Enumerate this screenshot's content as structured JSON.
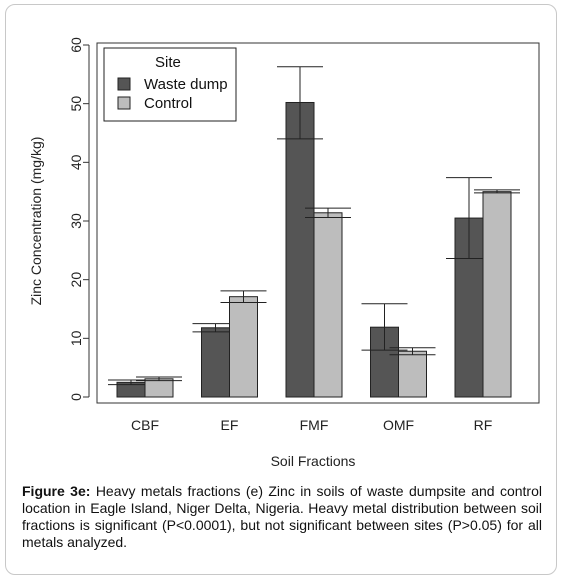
{
  "chart_data": {
    "type": "bar",
    "ylabel": "Zinc Concentration (mg/kg)",
    "xlabel": "Soil Fractions",
    "ylim": [
      0,
      60
    ],
    "yticks": [
      "0",
      "10",
      "20",
      "30",
      "40",
      "50",
      "60"
    ],
    "categories": [
      "CBF",
      "EF",
      "FMF",
      "OMF",
      "RF"
    ],
    "legend": {
      "title": "Site",
      "position": "top-left"
    },
    "series": [
      {
        "name": "Waste dump",
        "color": "#555555",
        "values": [
          2.5,
          11.8,
          50.2,
          11.9,
          30.5
        ],
        "err_low": [
          2.1,
          11.1,
          44.0,
          8.0,
          23.6
        ],
        "err_high": [
          2.9,
          12.5,
          56.3,
          15.9,
          37.4
        ]
      },
      {
        "name": "Control",
        "color": "#bdbdbd",
        "values": [
          3.1,
          17.1,
          31.4,
          7.8,
          35.0
        ],
        "err_low": [
          2.8,
          16.1,
          30.6,
          7.2,
          34.8
        ],
        "err_high": [
          3.4,
          18.1,
          32.2,
          8.4,
          35.3
        ]
      }
    ]
  },
  "caption": {
    "label": "Figure 3e:",
    "text": " Heavy metals fractions (e) Zinc in soils of waste dumpsite and control location in Eagle Island, Niger Delta, Nigeria. Heavy metal distribution between soil fractions is significant (P<0.0001), but not significant between sites (P>0.05) for all metals analyzed."
  }
}
